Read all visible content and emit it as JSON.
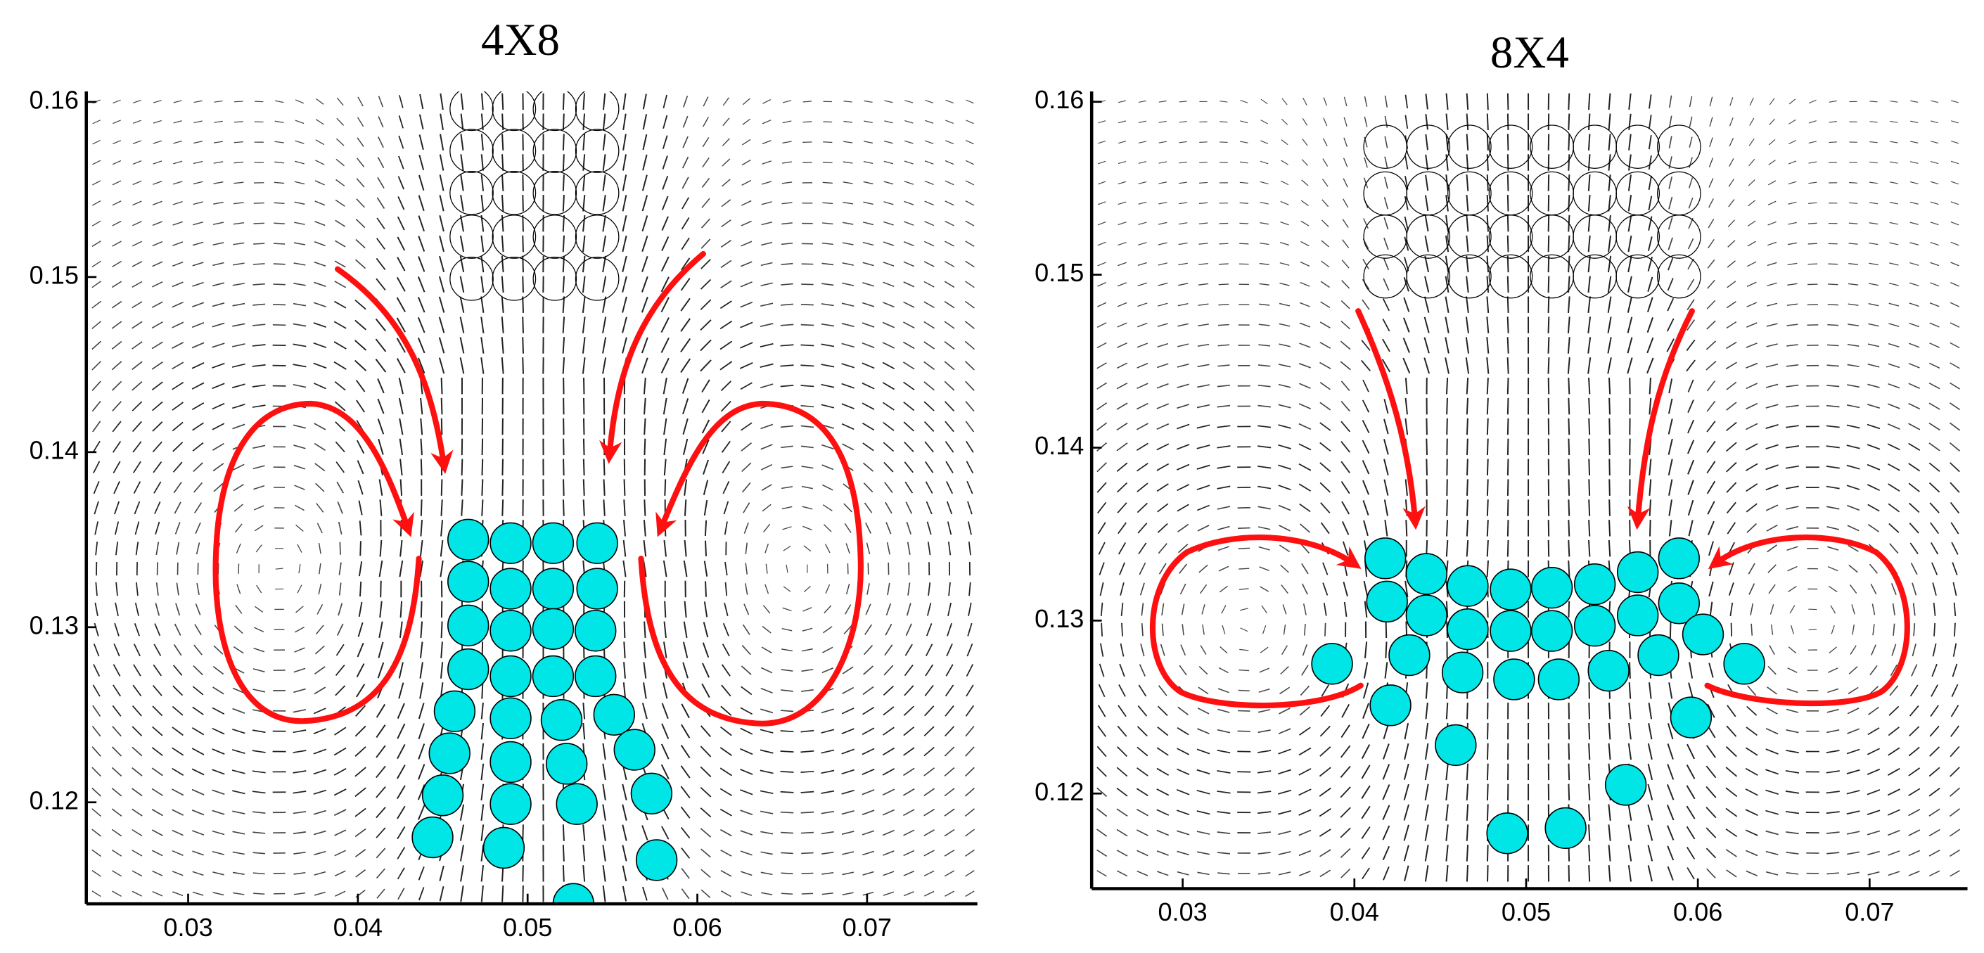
{
  "chart_data": [
    {
      "type": "scatter",
      "title": "4X8",
      "xlim": [
        0.024,
        0.0765
      ],
      "ylim": [
        0.1142,
        0.1606
      ],
      "xticks": [
        0.03,
        0.04,
        0.05,
        0.06,
        0.07
      ],
      "yticks": [
        0.12,
        0.13,
        0.14,
        0.15,
        0.16
      ],
      "series": [
        {
          "color": "#00e6e6",
          "filled": true,
          "x": [
            0.0465,
            0.049,
            0.0515,
            0.0541,
            0.0465,
            0.049,
            0.0515,
            0.0541,
            0.0465,
            0.049,
            0.0515,
            0.054,
            0.0465,
            0.049,
            0.0515,
            0.054,
            0.0457,
            0.049,
            0.052,
            0.0551,
            0.0454,
            0.049,
            0.0523,
            0.0563,
            0.045,
            0.049,
            0.0529,
            0.0573,
            0.0444,
            0.0486,
            0.0576,
            0.0527
          ],
          "values": [
            0.135,
            0.1348,
            0.1348,
            0.1348,
            0.1326,
            0.1322,
            0.1322,
            0.1322,
            0.1301,
            0.1298,
            0.1299,
            0.1298,
            0.1276,
            0.1272,
            0.1272,
            0.1272,
            0.1252,
            0.1248,
            0.1247,
            0.125,
            0.1228,
            0.1223,
            0.1222,
            0.123,
            0.1204,
            0.1199,
            0.1199,
            0.1205,
            0.118,
            0.1174,
            0.1167,
            0.1142
          ]
        },
        {
          "color": "#000000",
          "filled": false,
          "x": [
            0.0467,
            0.0492,
            0.0516,
            0.0541,
            0.0467,
            0.0492,
            0.0516,
            0.0541,
            0.0467,
            0.0492,
            0.0516,
            0.0541,
            0.0467,
            0.0492,
            0.0516,
            0.0541,
            0.0467,
            0.0492,
            0.0516,
            0.0541
          ],
          "values": [
            0.1596,
            0.1596,
            0.1596,
            0.1596,
            0.1572,
            0.1572,
            0.1572,
            0.1572,
            0.1548,
            0.1548,
            0.1548,
            0.1548,
            0.1523,
            0.1523,
            0.1523,
            0.1523,
            0.1499,
            0.1499,
            0.1499,
            0.1499
          ]
        }
      ]
    },
    {
      "type": "scatter",
      "title": "8X4",
      "xlim": [
        0.0247,
        0.0757
      ],
      "ylim": [
        0.1145,
        0.1606
      ],
      "xticks": [
        0.03,
        0.04,
        0.05,
        0.06,
        0.07
      ],
      "yticks": [
        0.12,
        0.13,
        0.14,
        0.15,
        0.16
      ],
      "series": [
        {
          "color": "#00e6e6",
          "filled": true,
          "x": [
            0.0418,
            0.0442,
            0.0466,
            0.0491,
            0.0515,
            0.054,
            0.0565,
            0.0589,
            0.0419,
            0.0442,
            0.0466,
            0.0491,
            0.0515,
            0.054,
            0.0565,
            0.0589,
            0.0387,
            0.0432,
            0.0463,
            0.0493,
            0.0519,
            0.0548,
            0.0577,
            0.0603,
            0.0627,
            0.0421,
            0.0596,
            0.0459,
            0.0558,
            0.0489,
            0.0523
          ],
          "values": [
            0.1336,
            0.1327,
            0.132,
            0.1318,
            0.1319,
            0.1321,
            0.1328,
            0.1336,
            0.1311,
            0.1303,
            0.1295,
            0.1294,
            0.1294,
            0.1297,
            0.1303,
            0.131,
            0.1275,
            0.128,
            0.127,
            0.1266,
            0.1266,
            0.1271,
            0.128,
            0.1292,
            0.1275,
            0.1251,
            0.1244,
            0.1228,
            0.1205,
            0.1177,
            0.118
          ]
        },
        {
          "color": "#000000",
          "filled": false,
          "x": [
            0.0418,
            0.0443,
            0.0467,
            0.0491,
            0.0515,
            0.054,
            0.0565,
            0.0589,
            0.0418,
            0.0443,
            0.0467,
            0.0491,
            0.0515,
            0.054,
            0.0565,
            0.0589,
            0.0418,
            0.0443,
            0.0467,
            0.0491,
            0.0515,
            0.054,
            0.0565,
            0.0589,
            0.0418,
            0.0443,
            0.0467,
            0.0491,
            0.0515,
            0.054,
            0.0565,
            0.0589
          ],
          "values": [
            0.1574,
            0.1574,
            0.1574,
            0.1574,
            0.1574,
            0.1574,
            0.1574,
            0.1574,
            0.1547,
            0.1547,
            0.1547,
            0.1547,
            0.1547,
            0.1547,
            0.1547,
            0.1547,
            0.1522,
            0.1522,
            0.1522,
            0.1522,
            0.1522,
            0.1522,
            0.1522,
            0.1522,
            0.1499,
            0.1499,
            0.1499,
            0.1499,
            0.1499,
            0.1499,
            0.1499,
            0.1499
          ]
        }
      ]
    }
  ]
}
